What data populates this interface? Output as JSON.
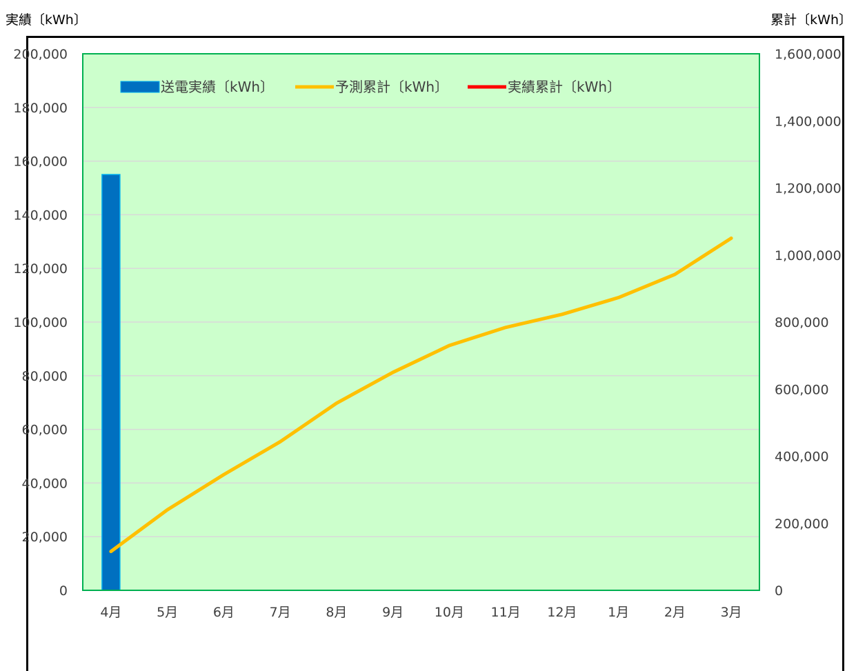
{
  "chart_data": {
    "type": "bar+line",
    "categories": [
      "4月",
      "5月",
      "6月",
      "7月",
      "8月",
      "9月",
      "10月",
      "11月",
      "12月",
      "1月",
      "2月",
      "3月"
    ],
    "left_axis": {
      "title": "実績〔kWh〕",
      "ylim": [
        0,
        200000
      ],
      "ticks": [
        "0",
        "20,000",
        "40,000",
        "60,000",
        "80,000",
        "100,000",
        "120,000",
        "140,000",
        "160,000",
        "180,000",
        "200,000"
      ]
    },
    "right_axis": {
      "title": "累計〔kWh〕",
      "ylim": [
        0,
        1600000
      ],
      "ticks": [
        "0",
        "200,000",
        "400,000",
        "600,000",
        "800,000",
        "1,000,000",
        "1,200,000",
        "1,400,000",
        "1,600,000"
      ]
    },
    "series": [
      {
        "name": "送電実績〔kWh〕",
        "kind": "bar",
        "axis": "left",
        "color": "#0070C0",
        "values": [
          155000,
          null,
          null,
          null,
          null,
          null,
          null,
          null,
          null,
          null,
          null,
          null
        ]
      },
      {
        "name": "予測累計〔kWh〕",
        "kind": "line",
        "axis": "right",
        "color": "#FFC000",
        "values": [
          116000,
          240000,
          345000,
          443000,
          558000,
          650000,
          730000,
          784000,
          823000,
          873000,
          942000,
          1050000
        ]
      },
      {
        "name": "実績累計〔kWh〕",
        "kind": "line",
        "axis": "right",
        "color": "#FF0000",
        "values": [
          null,
          null,
          null,
          null,
          null,
          null,
          null,
          null,
          null,
          null,
          null,
          null
        ]
      }
    ],
    "legend_position": "top",
    "grid": true,
    "plot_background": "#CCFFCC",
    "plot_border": "#00B050"
  }
}
